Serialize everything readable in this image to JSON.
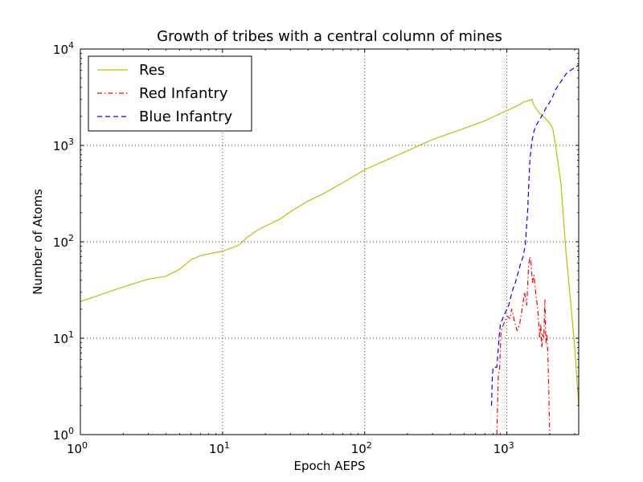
{
  "chart_data": {
    "type": "line",
    "title": "Growth of tribes with a central column of mines",
    "xlabel": "Epoch AEPS",
    "ylabel": "Number of Atoms",
    "xscale": "log",
    "yscale": "log",
    "xlim": [
      1,
      3200
    ],
    "ylim": [
      1,
      10000
    ],
    "grid": true,
    "legend_position": "top-left",
    "x_ticks": [
      {
        "value": 1,
        "base": "10",
        "exp": "0"
      },
      {
        "value": 10,
        "base": "10",
        "exp": "1"
      },
      {
        "value": 100,
        "base": "10",
        "exp": "2"
      },
      {
        "value": 1000,
        "base": "10",
        "exp": "3"
      }
    ],
    "y_ticks": [
      {
        "value": 1,
        "base": "10",
        "exp": "0"
      },
      {
        "value": 10,
        "base": "10",
        "exp": "1"
      },
      {
        "value": 100,
        "base": "10",
        "exp": "2"
      },
      {
        "value": 1000,
        "base": "10",
        "exp": "3"
      },
      {
        "value": 10000,
        "base": "10",
        "exp": "4"
      }
    ],
    "series": [
      {
        "name": "Res",
        "color": "#bfbf00",
        "style": "solid",
        "x": [
          1,
          2,
          3,
          4,
          5,
          6,
          7,
          8,
          10,
          13,
          15,
          18,
          25,
          30,
          40,
          50,
          60,
          80,
          100,
          150,
          200,
          300,
          500,
          700,
          1000,
          1200,
          1300,
          1400,
          1500,
          1550,
          1700,
          1800,
          1900,
          2000,
          2100,
          2200,
          2400,
          2600,
          2800,
          3000,
          3200
        ],
        "y": [
          24,
          34,
          41,
          44,
          52,
          65,
          72,
          75,
          80,
          92,
          112,
          135,
          170,
          205,
          265,
          310,
          360,
          460,
          560,
          730,
          880,
          1150,
          1500,
          1800,
          2300,
          2600,
          2800,
          2900,
          3000,
          2600,
          2150,
          2000,
          1850,
          1700,
          1500,
          1000,
          400,
          80,
          25,
          8,
          2
        ]
      },
      {
        "name": "Red Infantry",
        "color": "#ff0000",
        "style": "dashdot",
        "x": [
          850,
          870,
          890,
          910,
          950,
          1000,
          1050,
          1080,
          1100,
          1130,
          1180,
          1230,
          1280,
          1330,
          1380,
          1420,
          1450,
          1480,
          1510,
          1550,
          1600,
          1650,
          1700,
          1730,
          1760,
          1790,
          1820,
          1850,
          1880,
          1910,
          1940,
          1970,
          2000
        ],
        "y": [
          1,
          4,
          5,
          12,
          14,
          17,
          16,
          20,
          18,
          15,
          12,
          14,
          20,
          30,
          22,
          55,
          70,
          60,
          38,
          45,
          28,
          20,
          10,
          14,
          8,
          11,
          10,
          25,
          9,
          11,
          7,
          3,
          1
        ]
      },
      {
        "name": "Blue Infantry",
        "color": "#0000ff",
        "style": "dashed",
        "x": [
          780,
          790,
          800,
          850,
          880,
          900,
          950,
          1000,
          1030,
          1060,
          1100,
          1150,
          1200,
          1250,
          1300,
          1350,
          1400,
          1450,
          1500,
          1550,
          1600,
          1700,
          1800,
          1900,
          2000,
          2100,
          2200,
          2400,
          2600,
          2800,
          3000,
          3200
        ],
        "y": [
          2,
          4,
          5,
          5,
          10,
          14,
          17,
          20,
          22,
          26,
          32,
          38,
          48,
          60,
          70,
          95,
          210,
          700,
          1100,
          1400,
          1600,
          1850,
          2150,
          2500,
          2800,
          3200,
          3800,
          4600,
          5500,
          6000,
          6400,
          6800
        ]
      }
    ]
  }
}
